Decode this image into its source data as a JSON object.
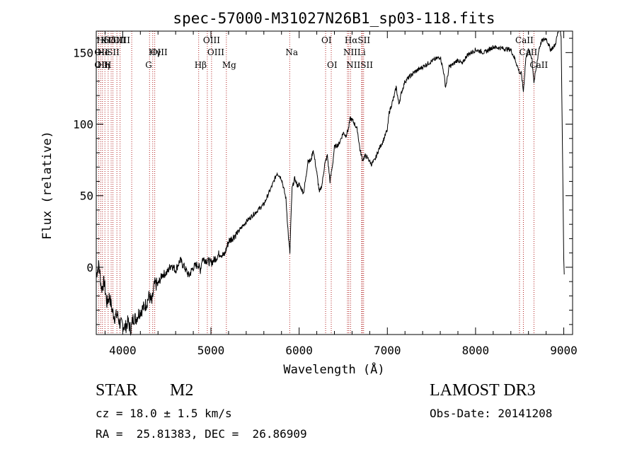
{
  "chart_data": {
    "type": "line",
    "title": "spec-57000-M31027N26B1_sp03-118.fits",
    "xlabel": "Wavelength (Å)",
    "ylabel": "Flux (relative)",
    "xlim": [
      3700,
      9100
    ],
    "ylim": [
      -47,
      165
    ],
    "x_ticks": [
      4000,
      5000,
      6000,
      7000,
      8000,
      9000
    ],
    "y_ticks": [
      0,
      50,
      100,
      150
    ],
    "grid": false,
    "series": [
      {
        "name": "flux",
        "x": [
          3700,
          3730,
          3760,
          3790,
          3820,
          3850,
          3880,
          3910,
          3940,
          3970,
          4000,
          4030,
          4060,
          4090,
          4120,
          4150,
          4180,
          4210,
          4240,
          4270,
          4300,
          4330,
          4360,
          4400,
          4450,
          4500,
          4550,
          4600,
          4650,
          4700,
          4750,
          4800,
          4850,
          4880,
          4900,
          4950,
          5000,
          5050,
          5100,
          5150,
          5200,
          5300,
          5400,
          5500,
          5600,
          5700,
          5750,
          5800,
          5850,
          5880,
          5895,
          5905,
          5920,
          5950,
          5980,
          6000,
          6050,
          6080,
          6100,
          6130,
          6160,
          6200,
          6230,
          6260,
          6290,
          6320,
          6350,
          6380,
          6400,
          6450,
          6500,
          6530,
          6560,
          6580,
          6600,
          6630,
          6660,
          6690,
          6720,
          6750,
          6780,
          6820,
          6860,
          6900,
          6950,
          7000,
          7020,
          7050,
          7080,
          7100,
          7130,
          7160,
          7200,
          7300,
          7400,
          7500,
          7600,
          7640,
          7660,
          7680,
          7700,
          7750,
          7800,
          7850,
          7900,
          8000,
          8100,
          8200,
          8300,
          8400,
          8450,
          8498,
          8520,
          8542,
          8570,
          8600,
          8640,
          8662,
          8690,
          8720,
          8750,
          8800,
          8850,
          8900,
          8950,
          8970,
          8990,
          9000,
          9005
        ],
        "values": [
          -5,
          2,
          -15,
          -10,
          -25,
          -20,
          -30,
          -35,
          -33,
          -40,
          -40,
          -42,
          -38,
          -44,
          -35,
          -36,
          -32,
          -30,
          -28,
          -25,
          -20,
          -25,
          -12,
          -12,
          -5,
          -4,
          2,
          -2,
          5,
          0,
          -6,
          0,
          2,
          -2,
          6,
          5,
          3,
          6,
          10,
          8,
          18,
          24,
          32,
          38,
          44,
          58,
          66,
          62,
          48,
          20,
          10,
          30,
          55,
          62,
          57,
          58,
          52,
          64,
          75,
          74,
          82,
          66,
          52,
          58,
          72,
          78,
          60,
          72,
          84,
          86,
          94,
          92,
          97,
          104,
          103,
          100,
          96,
          82,
          75,
          78,
          76,
          72,
          75,
          82,
          88,
          96,
          108,
          114,
          120,
          126,
          114,
          122,
          130,
          136,
          140,
          144,
          147,
          136,
          126,
          132,
          140,
          142,
          145,
          142,
          148,
          152,
          150,
          154,
          153,
          152,
          145,
          136,
          135,
          123,
          146,
          152,
          146,
          129,
          140,
          153,
          158,
          160,
          152,
          155,
          168,
          162,
          58,
          6,
          -5
        ]
      }
    ],
    "emission_lines": [
      {
        "label": "Hδ",
        "x": 3750,
        "row": 1
      },
      {
        "label": "K",
        "x": 3800,
        "row": 1
      },
      {
        "label": "Hδ",
        "x": 3830,
        "row": 1
      },
      {
        "label": "OIII",
        "x": 3890,
        "row": 1
      },
      {
        "label": "OIII",
        "x": 3940,
        "row": 1
      },
      {
        "label": "OII",
        "x": 3727,
        "row": 2
      },
      {
        "label": "He",
        "x": 3760,
        "row": 2
      },
      {
        "label": "SII",
        "x": 3870,
        "row": 2
      },
      {
        "label": "Hγ",
        "x": 4340,
        "row": 2
      },
      {
        "label": "OIII",
        "x": 4363,
        "row": 2
      },
      {
        "label": "OII",
        "x": 3727,
        "row": 3
      },
      {
        "label": "Hη",
        "x": 3760,
        "row": 3
      },
      {
        "label": "H",
        "x": 3835,
        "row": 3
      },
      {
        "label": "G",
        "x": 4304,
        "row": 3
      },
      {
        "label": "Hβ",
        "x": 4861,
        "row": 3
      },
      {
        "label": "Mg",
        "x": 5175,
        "row": 3
      },
      {
        "label": "OIII",
        "x": 4959,
        "row": 1
      },
      {
        "label": "OIII",
        "x": 5007,
        "row": 2
      },
      {
        "label": "Na",
        "x": 5893,
        "row": 2
      },
      {
        "label": "OI",
        "x": 6300,
        "row": 1
      },
      {
        "label": "OI",
        "x": 6364,
        "row": 3
      },
      {
        "label": "HαSII",
        "x": 6563,
        "row": 1
      },
      {
        "label": "NII",
        "x": 6548,
        "row": 2
      },
      {
        "label": "Li",
        "x": 6708,
        "row": 2
      },
      {
        "label": "NIISII",
        "x": 6583,
        "row": 3
      },
      {
        "label": "CaII",
        "x": 8498,
        "row": 1
      },
      {
        "label": "CaII",
        "x": 8542,
        "row": 2
      },
      {
        "label": "CaII",
        "x": 8662,
        "row": 3
      }
    ],
    "line_positions": [
      3727,
      3750,
      3770,
      3798,
      3835,
      3869,
      3889,
      3934,
      3970,
      4102,
      4304,
      4340,
      4363,
      4861,
      4959,
      5007,
      5175,
      5893,
      6300,
      6364,
      6548,
      6563,
      6583,
      6708,
      6717,
      6731,
      8498,
      8542,
      8662
    ]
  },
  "info": {
    "class_label": "STAR",
    "subclass": "M2",
    "cz": "cz = 18.0 ± 1.5 km/s",
    "coords": "RA =  25.81383, DEC =  26.86909",
    "survey": "LAMOST DR3",
    "obs_date": "Obs-Date: 20141208"
  },
  "colors": {
    "axis": "#000000",
    "spectrum": "#000000",
    "lines": "#b22222"
  }
}
